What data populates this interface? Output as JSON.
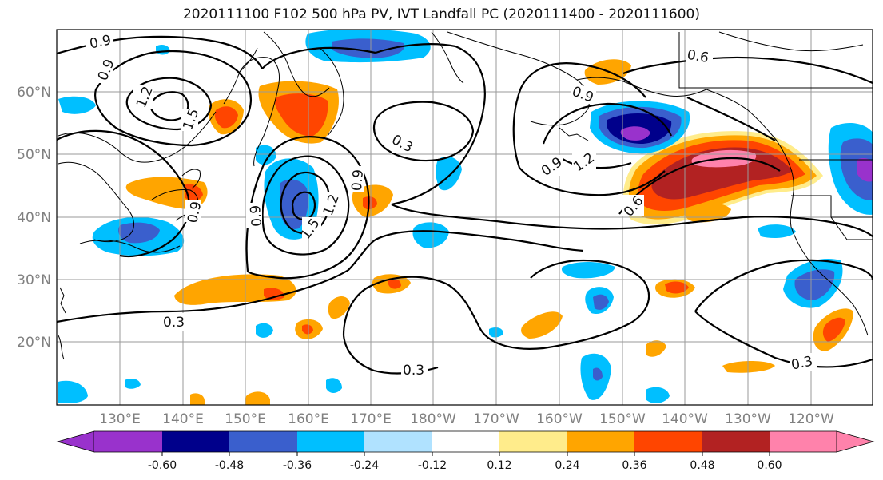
{
  "title": "2020111100 F102 500 hPa PV, IVT Landfall PC (2020111400 - 2020111600)",
  "lat_labels": [
    "60°N",
    "50°N",
    "40°N",
    "30°N",
    "20°N"
  ],
  "lon_labels": [
    "130°E",
    "140°E",
    "150°E",
    "160°E",
    "170°E",
    "180°W",
    "170°W",
    "160°W",
    "150°W",
    "140°W",
    "130°W",
    "120°W"
  ],
  "contour_labels": [
    "0.9",
    "0.9",
    "1.2",
    "1.5",
    "0.3",
    "0.9",
    "1.2",
    "1.5",
    "0.9",
    "0.9",
    "0.3",
    "0.3",
    "0.9",
    "1.2",
    "0.6",
    "0.6",
    "0.3",
    "0.9"
  ],
  "colorbar": {
    "tick_labels": [
      "-0.60",
      "-0.48",
      "-0.36",
      "-0.24",
      "-0.12",
      "0.12",
      "0.24",
      "0.36",
      "0.48",
      "0.60"
    ],
    "colors": [
      "#9932cc",
      "#00008b",
      "#3a5fcd",
      "#00bfff",
      "#b0e2ff",
      "#ffffff",
      "#ffec8b",
      "#ffa500",
      "#ff4500",
      "#b22222",
      "#ff82ab"
    ]
  },
  "fill_colors": {
    "neg1": "#00bfff",
    "neg2": "#3a5fcd",
    "neg3": "#00008b",
    "neg4": "#9932cc",
    "pos1": "#ffec8b",
    "pos2": "#ffa500",
    "pos3": "#ff4500",
    "pos4": "#b22222",
    "pos5": "#ff82ab"
  }
}
